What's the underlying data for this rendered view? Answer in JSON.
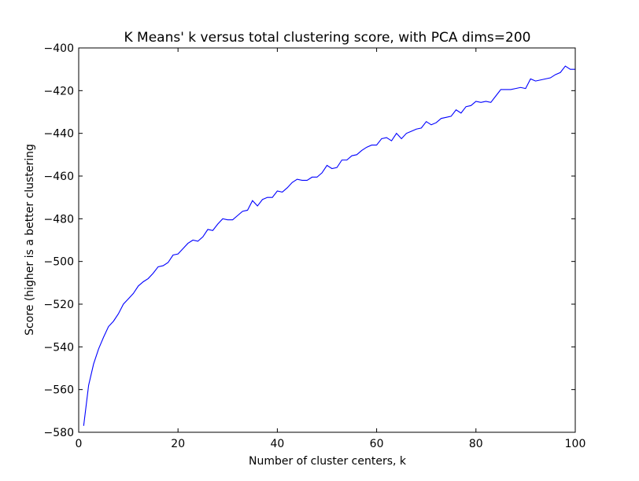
{
  "chart_data": {
    "type": "line",
    "title": "K Means' k versus total clustering score, with PCA dims=200",
    "xlabel": "Number of cluster centers, k",
    "ylabel": "Score (higher is a better clustering",
    "xlim": [
      0,
      100
    ],
    "ylim": [
      -580,
      -400
    ],
    "xticks": [
      0,
      20,
      40,
      60,
      80,
      100
    ],
    "yticks": [
      -580,
      -560,
      -540,
      -520,
      -500,
      -480,
      -460,
      -440,
      -420,
      -400
    ],
    "grid": false,
    "line_color": "#0000ff",
    "series": [
      {
        "x": [
          1,
          2,
          3,
          4,
          5,
          6,
          7,
          8,
          9,
          10,
          11,
          12,
          13,
          14,
          15,
          16,
          17,
          18,
          19,
          20,
          21,
          22,
          23,
          24,
          25,
          26,
          27,
          28,
          29,
          30,
          31,
          32,
          33,
          34,
          35,
          36,
          37,
          38,
          39,
          40,
          41,
          42,
          43,
          44,
          45,
          46,
          47,
          48,
          49,
          50,
          51,
          52,
          53,
          54,
          55,
          56,
          57,
          58,
          59,
          60,
          61,
          62,
          63,
          64,
          65,
          66,
          67,
          68,
          69,
          70,
          71,
          72,
          73,
          74,
          75,
          76,
          77,
          78,
          79,
          80,
          81,
          82,
          83,
          84,
          85,
          86,
          87,
          88,
          89,
          90,
          91,
          92,
          93,
          94,
          95,
          96,
          97,
          98,
          99,
          100
        ],
        "values": [
          -577,
          -558,
          -548,
          -541,
          -535.5,
          -530.5,
          -528,
          -524.5,
          -520,
          -517.5,
          -515,
          -511.5,
          -509.5,
          -508,
          -505.5,
          -502.5,
          -502,
          -500.5,
          -497,
          -496.5,
          -494,
          -491.5,
          -490,
          -490.5,
          -488.5,
          -485,
          -485.5,
          -482.5,
          -480,
          -480.5,
          -480.5,
          -478.5,
          -476.5,
          -476,
          -471.5,
          -474,
          -471,
          -470,
          -470,
          -467,
          -467.5,
          -465.5,
          -463,
          -461.5,
          -462,
          -462,
          -460.5,
          -460.5,
          -458.5,
          -455,
          -456.5,
          -456,
          -452.5,
          -452.5,
          -450.5,
          -450,
          -448,
          -446.5,
          -445.5,
          -445.5,
          -442.5,
          -442,
          -443.5,
          -440,
          -442.5,
          -440,
          -439,
          -438,
          -437.5,
          -434.5,
          -436,
          -435,
          -433,
          -432.5,
          -432,
          -429,
          -430.5,
          -427.5,
          -427,
          -425,
          -425.5,
          -425,
          -425.5,
          -422.5,
          -419.5,
          -419.5,
          -419.5,
          -419,
          -418.5,
          -419,
          -414.5,
          -415.5,
          -415,
          -414.5,
          -414,
          -412.5,
          -411.5,
          -408.5,
          -410,
          -410
        ]
      }
    ]
  }
}
